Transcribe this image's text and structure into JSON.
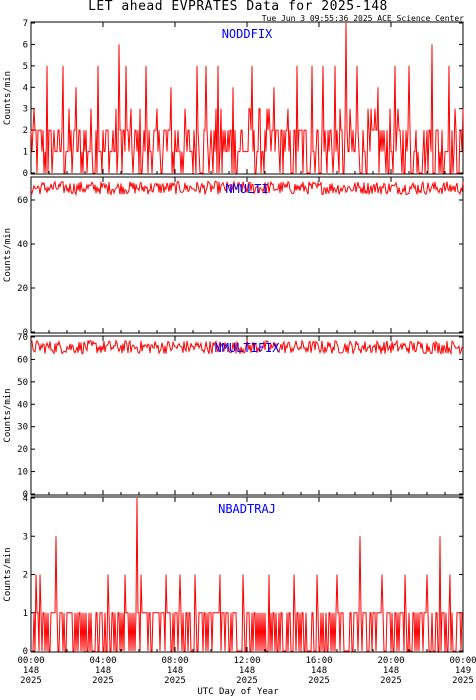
{
  "header": {
    "title": "LET ahead EVPRATES Data for 2025-148",
    "timestamp": "Tue Jun  3 09:55:36 2025 ACE Science Center"
  },
  "xaxis_title": "UTC Day of Year",
  "colors": {
    "data": "#ff0000",
    "label": "#0000ff",
    "axis": "#000000",
    "background": "#ffffff"
  },
  "chart_data": [
    {
      "type": "line",
      "series_label": "NODDFIX",
      "ylabel": "Counts/min",
      "ylim": [
        0,
        7
      ],
      "yticks": [
        0,
        1,
        2,
        3,
        4,
        5,
        6,
        7
      ],
      "xlim": [
        0,
        24
      ],
      "baseline": 1.5,
      "levels": [
        0,
        1,
        2,
        3
      ],
      "max_value": 7,
      "spikes": [
        [
          0.9,
          5
        ],
        [
          1.8,
          5
        ],
        [
          2.5,
          4
        ],
        [
          3.7,
          5
        ],
        [
          4.9,
          6
        ],
        [
          5.3,
          5
        ],
        [
          6.4,
          5
        ],
        [
          7.8,
          4
        ],
        [
          9.2,
          5
        ],
        [
          9.7,
          5
        ],
        [
          10.4,
          5
        ],
        [
          11.2,
          4
        ],
        [
          12.3,
          5
        ],
        [
          13.5,
          4
        ],
        [
          14.8,
          5
        ],
        [
          15.6,
          5
        ],
        [
          16.2,
          5
        ],
        [
          16.9,
          5
        ],
        [
          17.5,
          7
        ],
        [
          18.1,
          5
        ],
        [
          19.3,
          4
        ],
        [
          20.2,
          5
        ],
        [
          21.0,
          5
        ],
        [
          22.3,
          6
        ],
        [
          23.2,
          5
        ]
      ]
    },
    {
      "type": "line",
      "series_label": "NMULTI",
      "ylabel": "Counts/min",
      "ylim": [
        0,
        70
      ],
      "yticks": [
        0,
        20,
        40,
        60
      ],
      "xlim": [
        0,
        24
      ],
      "baseline": 65.5,
      "noise": 3,
      "max_value": 70
    },
    {
      "type": "line",
      "series_label": "NMULTIFIX",
      "ylabel": "Counts/min",
      "ylim": [
        0,
        70
      ],
      "yticks": [
        0,
        10,
        20,
        30,
        40,
        50,
        60,
        70
      ],
      "xlim": [
        0,
        24
      ],
      "baseline": 65.5,
      "noise": 3,
      "max_value": 70
    },
    {
      "type": "line",
      "series_label": "NBADTRAJ",
      "ylabel": "Counts/min",
      "ylim": [
        0,
        4
      ],
      "yticks": [
        0,
        1,
        2,
        3,
        4
      ],
      "xlim": [
        0,
        24
      ],
      "baseline": 0.8,
      "levels": [
        0,
        1
      ],
      "max_value": 4,
      "spikes": [
        [
          0.3,
          2
        ],
        [
          0.5,
          2
        ],
        [
          1.4,
          3
        ],
        [
          4.3,
          2
        ],
        [
          5.2,
          2
        ],
        [
          5.9,
          4
        ],
        [
          6.1,
          2
        ],
        [
          7.5,
          2
        ],
        [
          8.3,
          2
        ],
        [
          9.1,
          2
        ],
        [
          10.5,
          2
        ],
        [
          11.8,
          2
        ],
        [
          13.2,
          2
        ],
        [
          14.6,
          2
        ],
        [
          15.9,
          2
        ],
        [
          17.0,
          2
        ],
        [
          18.3,
          3
        ],
        [
          19.5,
          2
        ],
        [
          20.8,
          2
        ],
        [
          22.0,
          2
        ],
        [
          22.7,
          3
        ],
        [
          23.3,
          2
        ]
      ]
    }
  ],
  "x_ticks": [
    {
      "pos": 0,
      "time": "00:00",
      "doy": "148",
      "year": "2025"
    },
    {
      "pos": 4,
      "time": "04:00",
      "doy": "148",
      "year": "2025"
    },
    {
      "pos": 8,
      "time": "08:00",
      "doy": "148",
      "year": "2025"
    },
    {
      "pos": 12,
      "time": "12:00",
      "doy": "148",
      "year": "2025"
    },
    {
      "pos": 16,
      "time": "16:00",
      "doy": "148",
      "year": "2025"
    },
    {
      "pos": 20,
      "time": "20:00",
      "doy": "148",
      "year": "2025"
    },
    {
      "pos": 24,
      "time": "00:00",
      "doy": "149",
      "year": "2025"
    }
  ]
}
